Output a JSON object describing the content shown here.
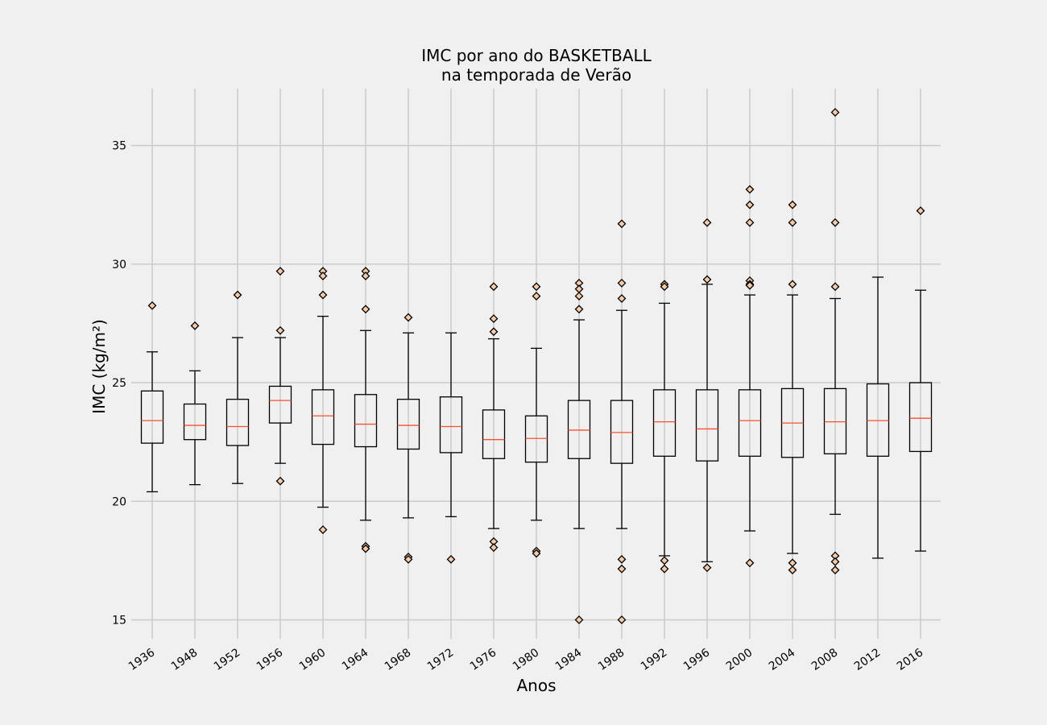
{
  "chart_data": {
    "type": "box",
    "title_line1": "IMC por ano do BASKETBALL",
    "title_line2": "na temporada de Verão",
    "xlabel": "Anos",
    "ylabel": "IMC (kg/m²)",
    "ylim": [
      14.2,
      37.4
    ],
    "yticks": [
      15,
      20,
      25,
      30,
      35
    ],
    "grid": true,
    "colors": {
      "median": "#fc4f30",
      "flier_fill": "#f7caa3",
      "box": "#000000",
      "grid": "#cbcbcb",
      "background": "#f0f0f0"
    },
    "categories": [
      "1936",
      "1948",
      "1952",
      "1956",
      "1960",
      "1964",
      "1968",
      "1972",
      "1976",
      "1980",
      "1984",
      "1988",
      "1992",
      "1996",
      "2000",
      "2004",
      "2008",
      "2012",
      "2016"
    ],
    "boxes": [
      {
        "whislo": 20.4,
        "q1": 22.45,
        "med": 23.4,
        "q3": 24.65,
        "whishi": 26.3,
        "fliers": [
          28.25
        ]
      },
      {
        "whislo": 20.7,
        "q1": 22.6,
        "med": 23.2,
        "q3": 24.1,
        "whishi": 25.5,
        "fliers": [
          27.4
        ]
      },
      {
        "whislo": 20.75,
        "q1": 22.35,
        "med": 23.15,
        "q3": 24.3,
        "whishi": 26.9,
        "fliers": [
          28.7
        ]
      },
      {
        "whislo": 21.6,
        "q1": 23.3,
        "med": 24.25,
        "q3": 24.85,
        "whishi": 26.9,
        "fliers": [
          29.7,
          27.2,
          20.85
        ]
      },
      {
        "whislo": 19.75,
        "q1": 22.4,
        "med": 23.6,
        "q3": 24.7,
        "whishi": 27.8,
        "fliers": [
          29.7,
          29.5,
          28.7,
          18.8
        ]
      },
      {
        "whislo": 19.2,
        "q1": 22.3,
        "med": 23.25,
        "q3": 24.5,
        "whishi": 27.2,
        "fliers": [
          29.7,
          29.5,
          28.1,
          18.1,
          18.0
        ]
      },
      {
        "whislo": 19.3,
        "q1": 22.2,
        "med": 23.2,
        "q3": 24.3,
        "whishi": 27.1,
        "fliers": [
          27.75,
          17.65,
          17.55
        ]
      },
      {
        "whislo": 19.35,
        "q1": 22.05,
        "med": 23.15,
        "q3": 24.4,
        "whishi": 27.1,
        "fliers": [
          17.55
        ]
      },
      {
        "whislo": 18.85,
        "q1": 21.8,
        "med": 22.6,
        "q3": 23.85,
        "whishi": 26.85,
        "fliers": [
          29.05,
          27.7,
          27.15,
          18.3,
          18.05
        ]
      },
      {
        "whislo": 19.2,
        "q1": 21.65,
        "med": 22.65,
        "q3": 23.6,
        "whishi": 26.45,
        "fliers": [
          29.05,
          28.65,
          17.9,
          17.8
        ]
      },
      {
        "whislo": 18.85,
        "q1": 21.8,
        "med": 23.0,
        "q3": 24.25,
        "whishi": 27.65,
        "fliers": [
          29.2,
          28.95,
          28.65,
          28.1,
          15.0
        ]
      },
      {
        "whislo": 18.85,
        "q1": 21.6,
        "med": 22.9,
        "q3": 24.25,
        "whishi": 28.05,
        "fliers": [
          31.7,
          29.2,
          28.55,
          17.55,
          17.15,
          15.0
        ]
      },
      {
        "whislo": 17.7,
        "q1": 21.9,
        "med": 23.35,
        "q3": 24.7,
        "whishi": 28.35,
        "fliers": [
          29.15,
          29.05,
          17.5,
          17.15
        ]
      },
      {
        "whislo": 17.45,
        "q1": 21.7,
        "med": 23.05,
        "q3": 24.7,
        "whishi": 29.15,
        "fliers": [
          31.75,
          29.35,
          17.2
        ]
      },
      {
        "whislo": 18.75,
        "q1": 21.9,
        "med": 23.4,
        "q3": 24.7,
        "whishi": 28.7,
        "fliers": [
          33.15,
          32.5,
          31.75,
          29.3,
          29.15,
          29.1,
          17.4
        ]
      },
      {
        "whislo": 17.8,
        "q1": 21.85,
        "med": 23.3,
        "q3": 24.75,
        "whishi": 28.7,
        "fliers": [
          32.5,
          31.75,
          29.15,
          17.4,
          17.1
        ]
      },
      {
        "whislo": 19.45,
        "q1": 22.0,
        "med": 23.35,
        "q3": 24.75,
        "whishi": 28.55,
        "fliers": [
          36.4,
          31.75,
          29.05,
          17.7,
          17.45,
          17.1
        ]
      },
      {
        "whislo": 17.6,
        "q1": 21.9,
        "med": 23.4,
        "q3": 24.95,
        "whishi": 29.45,
        "fliers": []
      },
      {
        "whislo": 17.9,
        "q1": 22.1,
        "med": 23.5,
        "q3": 25.0,
        "whishi": 28.9,
        "fliers": [
          32.25
        ]
      }
    ]
  }
}
